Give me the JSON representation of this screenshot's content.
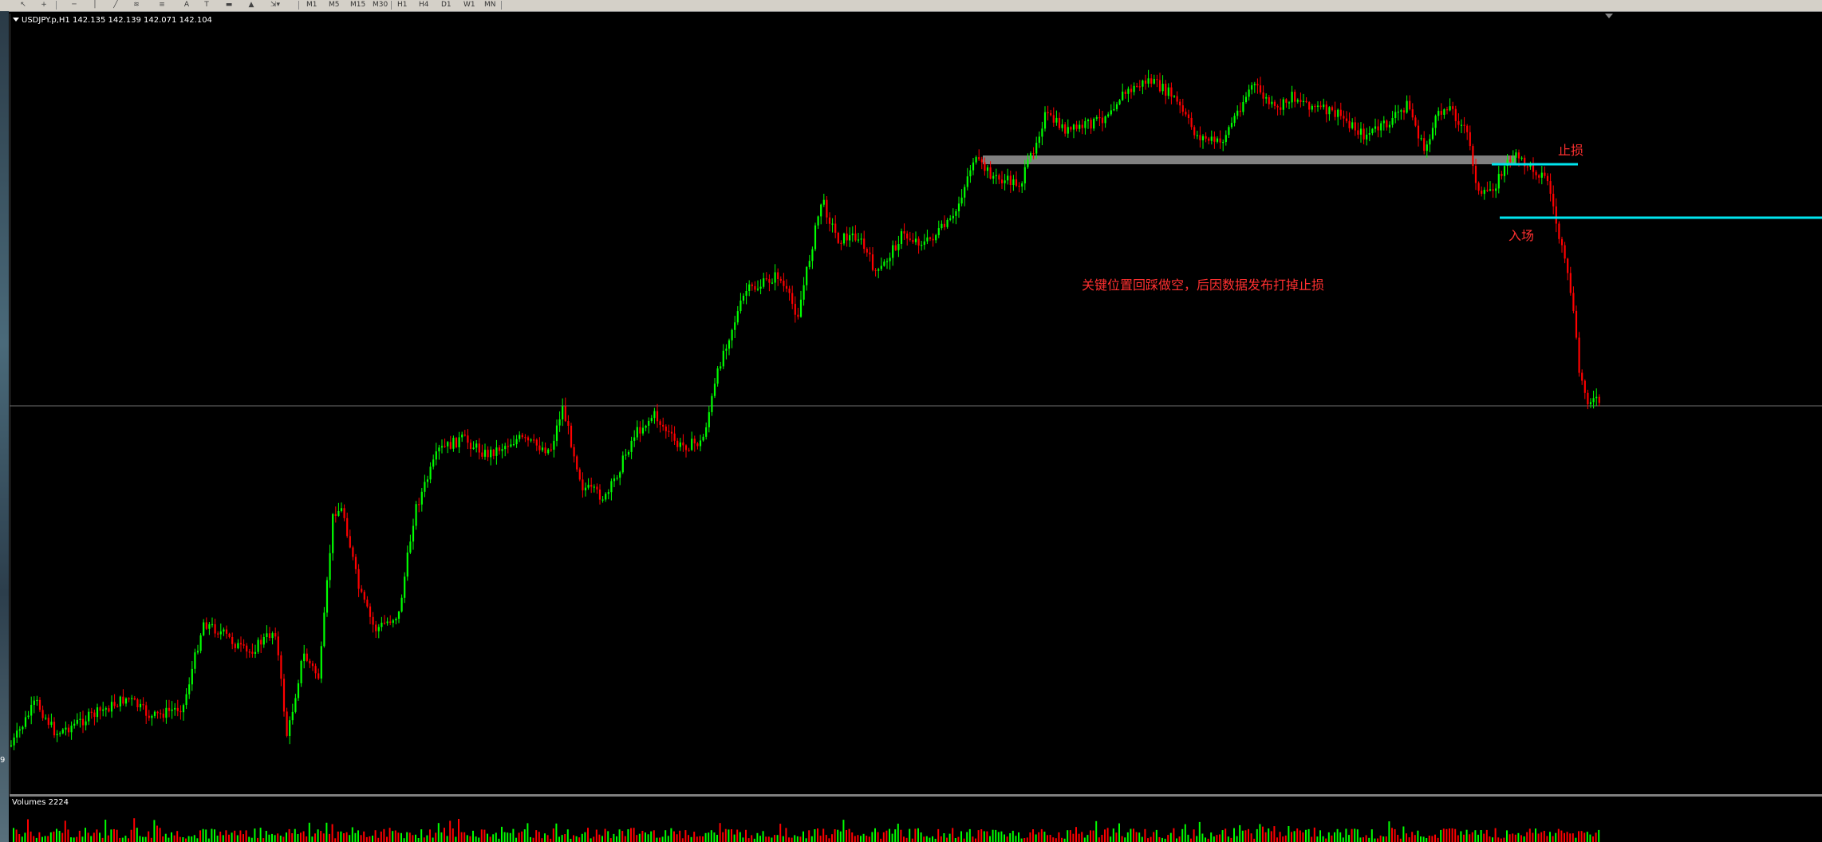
{
  "toolbar": {
    "timeframes": [
      "M1",
      "M5",
      "M15",
      "M30",
      "H1",
      "H4",
      "D1",
      "W1",
      "MN"
    ],
    "icons": [
      "cursor-icon",
      "crosshair-icon",
      "horizontal-line-icon",
      "vertical-line-icon",
      "trendline-icon",
      "fibonacci-icon",
      "channel-icon",
      "text-icon",
      "label-icon",
      "rectangle-icon",
      "triangle-icon",
      "arrows-icon"
    ],
    "text_tool": "A"
  },
  "chart": {
    "symbol_info": "USDJPY.p,H1  142.135 142.139 142.071 142.104",
    "annotation_main": "关键位置回踩做空，后因数据发布打掉止损",
    "annotation_stop": "止损",
    "annotation_entry": "入场",
    "left_tick_label": "9",
    "colors": {
      "background": "#000000",
      "bull_candle": "#00ff00",
      "bear_candle": "#ff0000",
      "stop_line": "#00e5ee",
      "entry_line": "#00e5ee",
      "zone": "#808080",
      "price_line": "#707070",
      "annotation_text": "#ff3030"
    }
  },
  "volume": {
    "label": "Volumes 2224"
  }
}
